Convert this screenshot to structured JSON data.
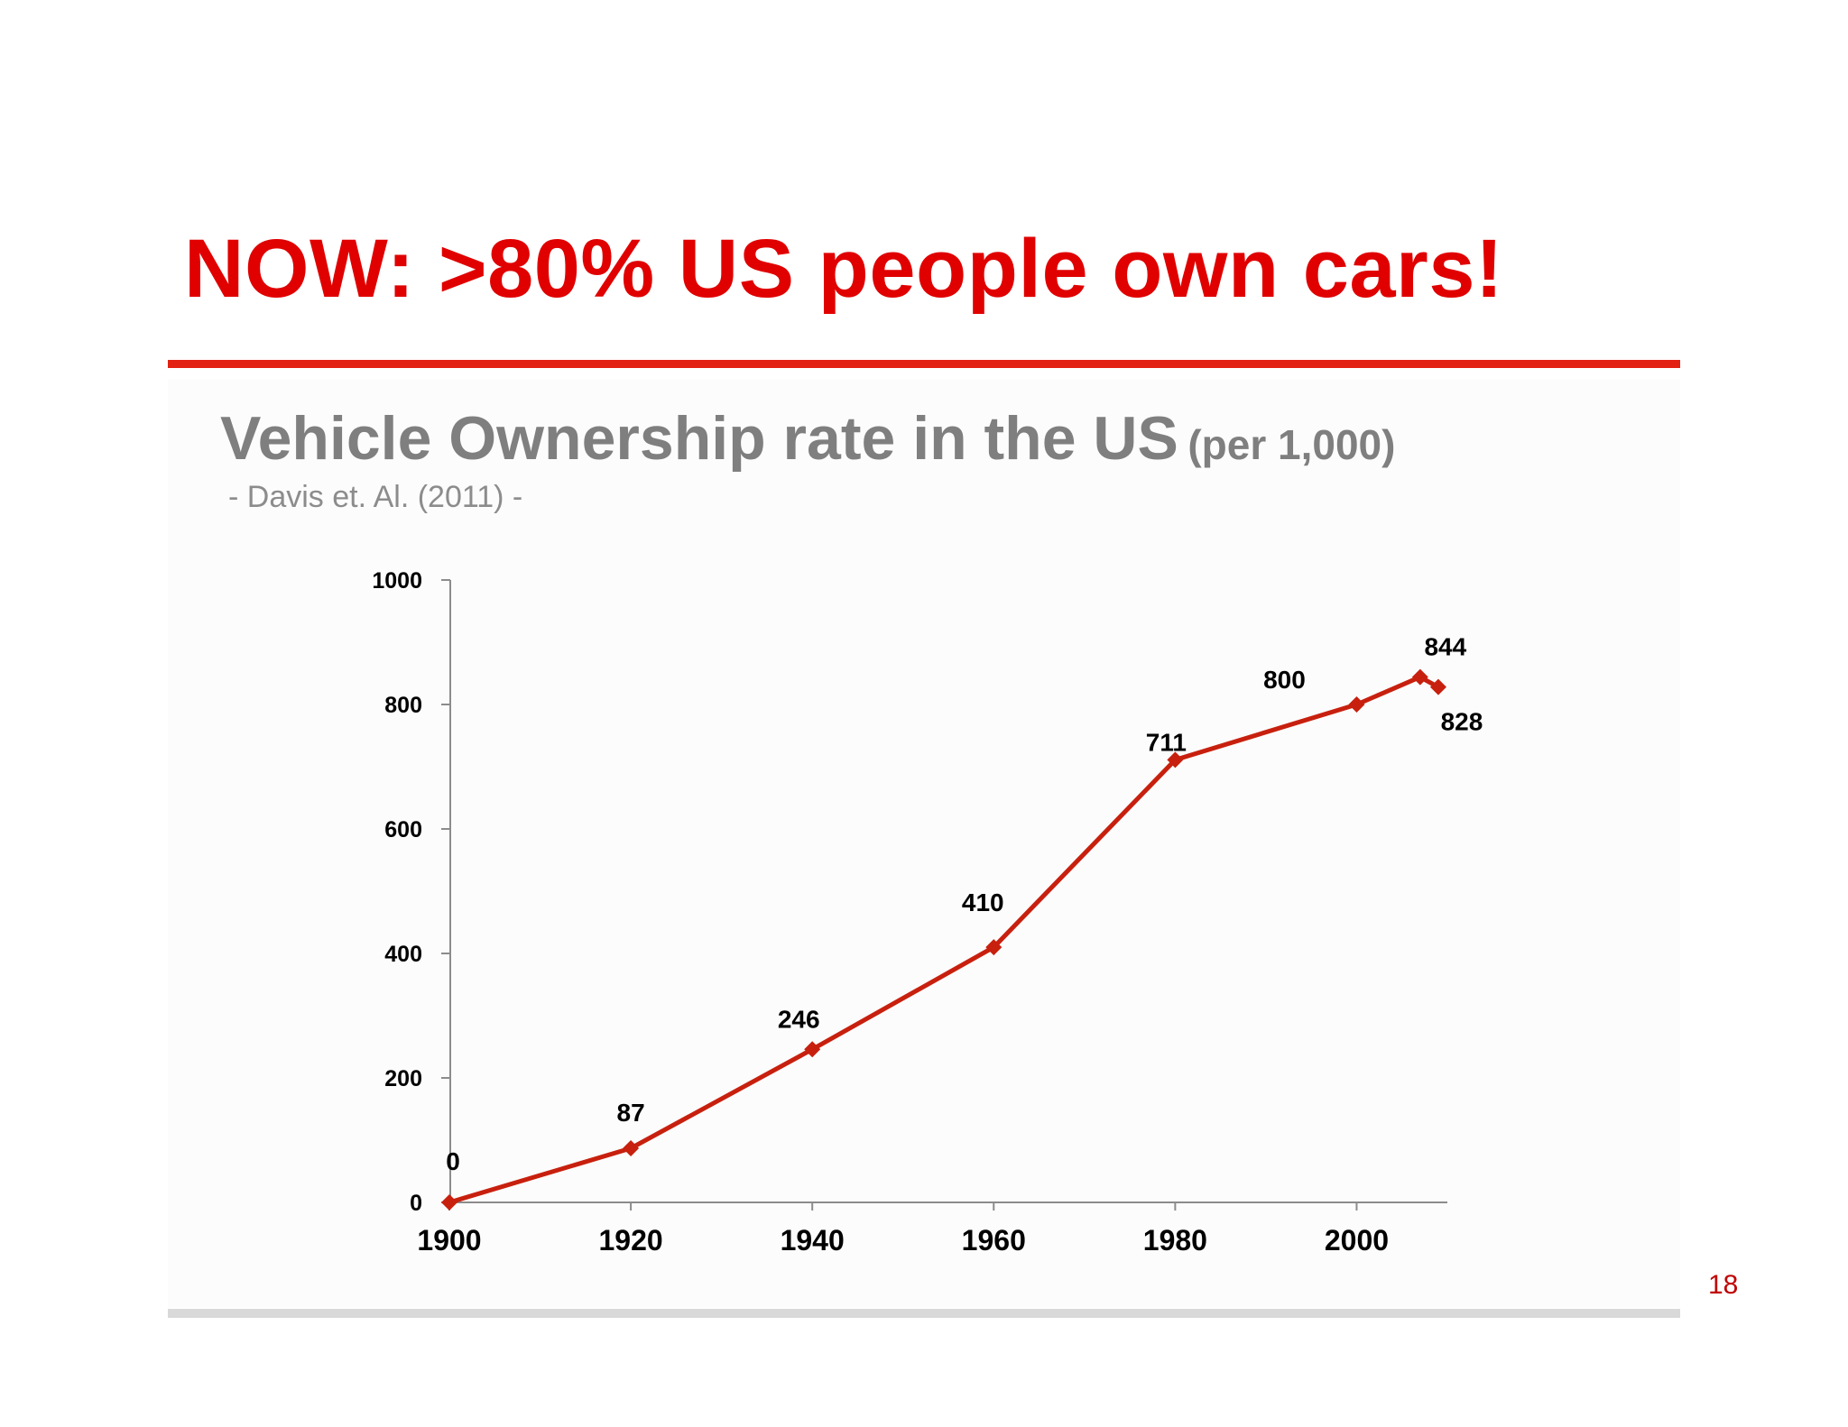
{
  "slide": {
    "title": "NOW: >80% US people own cars!",
    "title_color": "#e00000",
    "rule_color": "#e32213",
    "page_number": "18"
  },
  "chart_heading": {
    "title": "Vehicle Ownership rate in the US",
    "unit": "(per 1,000)",
    "source": "- Davis et. Al. (2011) -"
  },
  "chart_data": {
    "type": "line",
    "title": "Vehicle Ownership rate in the US (per 1,000)",
    "xlabel": "",
    "ylabel": "",
    "xlim": [
      1900,
      2010
    ],
    "ylim": [
      0,
      1000
    ],
    "x_ticks": [
      "1900",
      "1920",
      "1940",
      "1960",
      "1980",
      "2000"
    ],
    "y_ticks": [
      "0",
      "200",
      "400",
      "600",
      "800",
      "1000"
    ],
    "grid": false,
    "legend": "none",
    "series": [
      {
        "color": "#c8200e",
        "marker": "diamond",
        "points": [
          {
            "x": 1900,
            "y": 0,
            "label": "0"
          },
          {
            "x": 1920,
            "y": 87,
            "label": "87"
          },
          {
            "x": 1940,
            "y": 246,
            "label": "246"
          },
          {
            "x": 1960,
            "y": 410,
            "label": "410"
          },
          {
            "x": 1980,
            "y": 711,
            "label": "711"
          },
          {
            "x": 2000,
            "y": 800,
            "label": "800"
          },
          {
            "x": 2007,
            "y": 844,
            "label": "844"
          },
          {
            "x": 2009,
            "y": 828,
            "label": "828"
          }
        ]
      }
    ]
  }
}
